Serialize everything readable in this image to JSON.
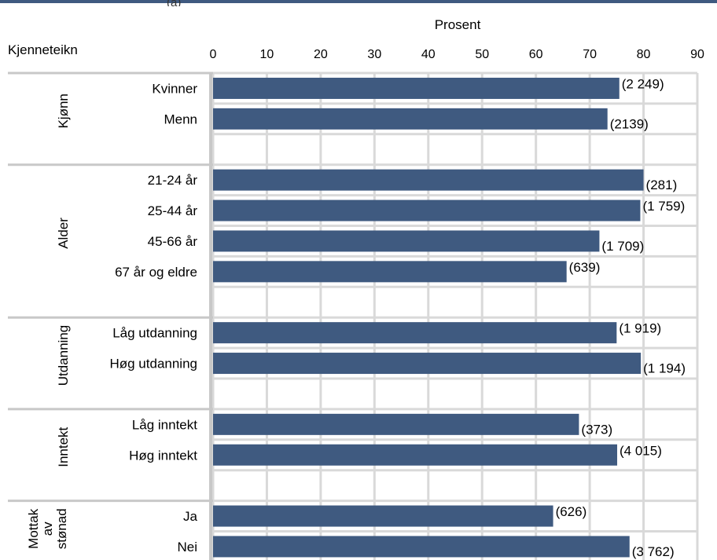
{
  "header": {
    "clipped_label": "(a)"
  },
  "chart_data": {
    "type": "bar",
    "orientation": "horizontal",
    "title": "",
    "xlabel": "Prosent",
    "ylabel": "Kjenneteikn",
    "xlim": [
      0,
      90
    ],
    "xticks": [
      "0",
      "10",
      "20",
      "30",
      "40",
      "50",
      "60",
      "70",
      "80",
      "90"
    ],
    "grid": true,
    "bar_color": "#3f5a80",
    "groups": [
      {
        "name": "Kjønn",
        "bars": [
          {
            "label": "Kvinner",
            "value": 75.5,
            "n_label": "(2 249)"
          },
          {
            "label": "Menn",
            "value": 73.3,
            "n_label": "(2139)"
          }
        ]
      },
      {
        "name": "Alder",
        "bars": [
          {
            "label": "21-24 år",
            "value": 80.0,
            "n_label": "(281)"
          },
          {
            "label": "25-44 år",
            "value": 79.4,
            "n_label": "(1 759)"
          },
          {
            "label": "45-66 år",
            "value": 71.8,
            "n_label": "(1 709)"
          },
          {
            "label": "67 år og eldre",
            "value": 65.7,
            "n_label": "(639)"
          }
        ]
      },
      {
        "name": "Utdanning",
        "bars": [
          {
            "label": "Låg utdanning",
            "value": 75.0,
            "n_label": "(1 919)"
          },
          {
            "label": "Høg utdanning",
            "value": 79.5,
            "n_label": "(1 194)"
          }
        ]
      },
      {
        "name": "Inntekt",
        "bars": [
          {
            "label": "Låg inntekt",
            "value": 68.0,
            "n_label": "(373)"
          },
          {
            "label": "Høg inntekt",
            "value": 75.1,
            "n_label": "(4 015)"
          }
        ]
      },
      {
        "name": "Mottak av stønad",
        "name_lines": [
          "Mottak",
          "av",
          "stønad"
        ],
        "bars": [
          {
            "label": "Ja",
            "value": 63.2,
            "n_label": "(626)"
          },
          {
            "label": "Nei",
            "value": 77.4,
            "n_label": "(3 762)"
          }
        ]
      }
    ]
  }
}
